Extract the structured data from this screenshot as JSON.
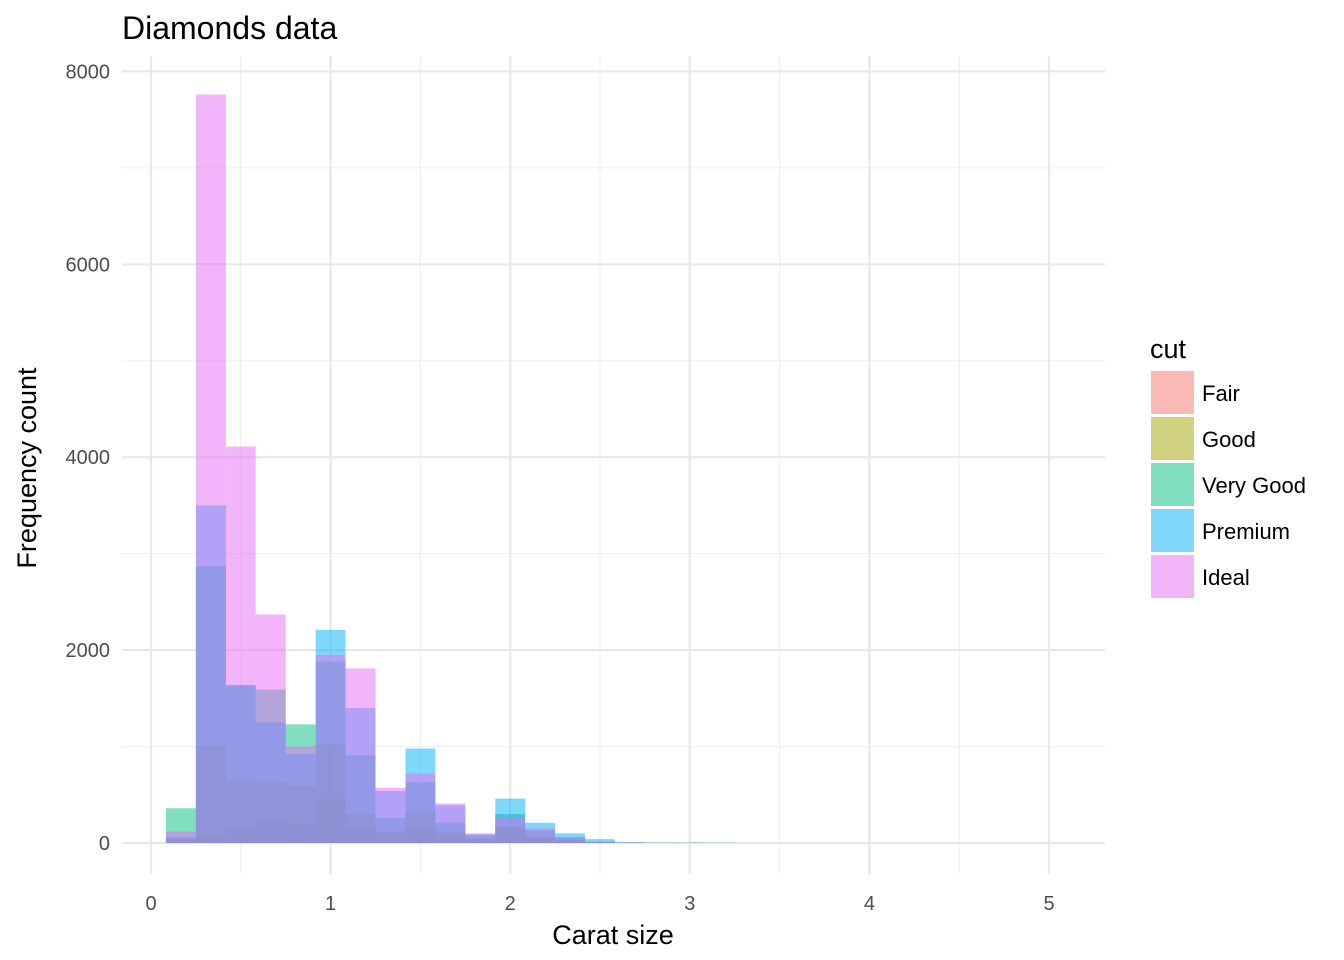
{
  "chart_data": {
    "type": "bar",
    "subtype": "overlapping-histogram",
    "title": "Diamonds data",
    "xlabel": "Carat size",
    "ylabel": "Frequency count",
    "xlim": [
      0,
      5.2
    ],
    "ylim": [
      -300,
      8000
    ],
    "x_ticks": [
      0,
      1,
      2,
      3,
      4,
      5
    ],
    "y_ticks": [
      0,
      2000,
      4000,
      6000,
      8000
    ],
    "grid": true,
    "bar_opacity": 0.5,
    "legend": {
      "title": "cut",
      "position": "right"
    },
    "bin_edges": [
      0.083,
      0.25,
      0.417,
      0.583,
      0.75,
      0.917,
      1.083,
      1.25,
      1.417,
      1.583,
      1.75,
      1.917,
      2.083,
      2.25,
      2.417,
      2.583,
      2.75,
      2.917,
      3.083,
      3.25,
      3.417,
      3.583,
      3.75,
      3.917,
      4.083,
      4.25,
      4.417,
      4.583,
      4.75,
      4.917,
      5.083
    ],
    "series": [
      {
        "name": "Fair",
        "color": "#F8766D",
        "values": [
          10,
          80,
          150,
          250,
          200,
          450,
          140,
          100,
          140,
          50,
          20,
          150,
          50,
          20,
          5,
          3,
          2,
          1,
          1,
          0,
          0,
          0,
          0,
          0,
          0,
          0,
          0,
          0,
          0,
          0
        ]
      },
      {
        "name": "Good",
        "color": "#A3A500",
        "values": [
          40,
          1000,
          650,
          630,
          590,
          1020,
          300,
          120,
          330,
          120,
          50,
          170,
          70,
          30,
          8,
          3,
          1,
          1,
          0,
          0,
          0,
          0,
          0,
          0,
          0,
          0,
          0,
          0,
          0,
          0
        ]
      },
      {
        "name": "Very Good",
        "color": "#00BF7D",
        "values": [
          360,
          2870,
          1640,
          1590,
          1230,
          1880,
          910,
          260,
          630,
          210,
          80,
          300,
          130,
          60,
          15,
          5,
          2,
          1,
          0,
          0,
          0,
          0,
          0,
          0,
          0,
          0,
          0,
          0,
          0,
          0
        ]
      },
      {
        "name": "Premium",
        "color": "#00B0F6",
        "values": [
          60,
          3500,
          1630,
          1250,
          920,
          2210,
          1400,
          540,
          980,
          390,
          90,
          460,
          210,
          100,
          40,
          8,
          3,
          5,
          3,
          0,
          0,
          0,
          0,
          0,
          0,
          0,
          0,
          0,
          0,
          0
        ]
      },
      {
        "name": "Ideal",
        "color": "#E76BF3",
        "values": [
          120,
          7760,
          4110,
          2370,
          1000,
          1950,
          1810,
          570,
          720,
          410,
          100,
          260,
          150,
          60,
          10,
          3,
          1,
          0,
          0,
          0,
          0,
          0,
          0,
          0,
          0,
          0,
          0,
          0,
          0,
          0
        ]
      }
    ]
  }
}
